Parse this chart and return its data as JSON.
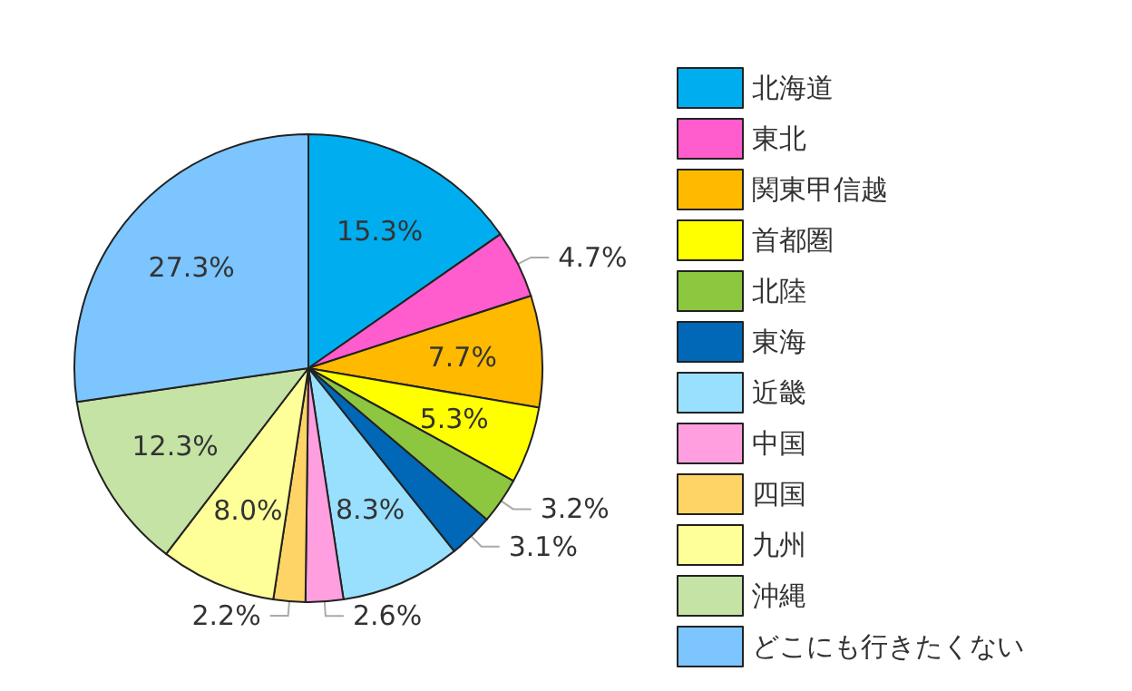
{
  "chart_data": {
    "type": "pie",
    "categories": [
      "北海道",
      "東北",
      "関東甲信越",
      "首都圏",
      "北陸",
      "東海",
      "近畿",
      "中国",
      "四国",
      "九州",
      "沖縄",
      "どこにも行きたくない"
    ],
    "values": [
      15.3,
      4.7,
      7.7,
      5.3,
      3.2,
      3.1,
      8.3,
      2.6,
      2.2,
      8.0,
      12.3,
      27.3
    ],
    "colors": [
      "#00aeef",
      "#ff5ccd",
      "#ffba00",
      "#ffff00",
      "#8dc63f",
      "#0068b7",
      "#99e0ff",
      "#ff9fe0",
      "#ffd466",
      "#ffff99",
      "#c5e3a4",
      "#7cc5ff"
    ],
    "value_labels": [
      "15.3%",
      "4.7%",
      "7.7%",
      "5.3%",
      "3.2%",
      "3.1%",
      "8.3%",
      "2.6%",
      "2.2%",
      "8.0%",
      "12.3%",
      "27.3%"
    ],
    "legend": "right"
  }
}
